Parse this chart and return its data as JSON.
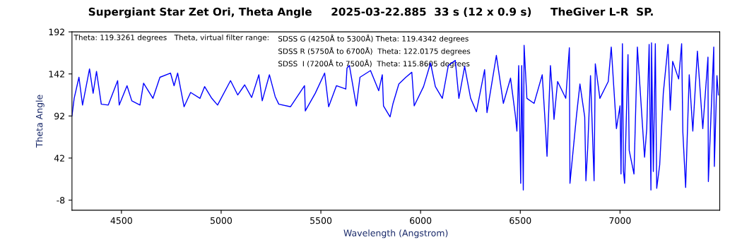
{
  "chart_data": {
    "type": "line",
    "title": "Supergiant Star Zet Ori, Theta Angle     2025-03-22.885  33 s (12 x 0.9 s)     TheGiver L-R  SP.",
    "xlabel": "Wavelength (Angstrom)",
    "ylabel": "Theta Angle",
    "annotations": [
      "Theta: 119.3261 degrees",
      "Theta, virtual filter range:",
      "SDSS G (4250Å to 5300Å) Theta: 119.4342 degrees",
      "SDSS R (5750Å to 6700Å)  Theta: 122.0175 degrees",
      "SDSS  I (7200Å to 7500Å)  Theta: 115.8605 degrees"
    ],
    "xlim": [
      4252,
      7500
    ],
    "ylim": [
      -20,
      192
    ],
    "xticks": [
      4500,
      5000,
      5500,
      6000,
      6500,
      7000
    ],
    "yticks": [
      -8,
      42,
      92,
      142,
      192
    ],
    "grid": false,
    "legend": false,
    "marker": "none",
    "line_style": "solid",
    "series": [
      {
        "color": "#0000ff",
        "x": [
          4252,
          4263,
          4287,
          4305,
          4340,
          4358,
          4375,
          4399,
          4434,
          4481,
          4489,
          4528,
          4552,
          4593,
          4611,
          4658,
          4693,
          4746,
          4764,
          4782,
          4814,
          4847,
          4894,
          4917,
          4953,
          4982,
          5047,
          5083,
          5118,
          5153,
          5189,
          5206,
          5242,
          5271,
          5289,
          5348,
          5418,
          5422,
          5472,
          5519,
          5539,
          5578,
          5625,
          5631,
          5643,
          5678,
          5696,
          5749,
          5790,
          5808,
          5814,
          5847,
          5862,
          5891,
          5926,
          5956,
          5968,
          6015,
          6050,
          6074,
          6109,
          6139,
          6174,
          6192,
          6221,
          6251,
          6280,
          6321,
          6333,
          6380,
          6415,
          6451,
          6475,
          6483,
          6492,
          6502,
          6507,
          6515,
          6519,
          6533,
          6569,
          6610,
          6626,
          6634,
          6651,
          6663,
          6669,
          6687,
          6728,
          6746,
          6749,
          6782,
          6799,
          6823,
          6829,
          6838,
          6852,
          6870,
          6876,
          6899,
          6941,
          6956,
          6982,
          7000,
          7005,
          7012,
          7017,
          7023,
          7040,
          7046,
          7070,
          7087,
          7123,
          7134,
          7146,
          7155,
          7158,
          7167,
          7177,
          7184,
          7199,
          7217,
          7241,
          7252,
          7264,
          7294,
          7309,
          7315,
          7329,
          7347,
          7365,
          7388,
          7415,
          7441,
          7443,
          7470,
          7473,
          7486,
          7493
        ],
        "values": [
          92,
          113,
          138,
          105,
          148,
          119,
          145,
          106,
          105,
          134,
          105,
          128,
          110,
          105,
          131,
          113,
          138,
          143,
          128,
          143,
          103,
          120,
          113,
          127,
          113,
          105,
          134,
          117,
          129,
          114,
          141,
          110,
          141,
          115,
          106,
          103,
          128,
          98,
          119,
          143,
          103,
          128,
          124,
          149,
          152,
          104,
          138,
          146,
          122,
          141,
          104,
          91,
          107,
          130,
          138,
          144,
          104,
          127,
          155,
          127,
          113,
          152,
          158,
          113,
          151,
          113,
          97,
          147,
          96,
          164,
          107,
          137,
          93,
          74,
          152,
          12,
          152,
          4,
          176,
          113,
          107,
          141,
          79,
          44,
          152,
          113,
          88,
          133,
          113,
          173,
          12,
          93,
          130,
          91,
          15,
          54,
          140,
          15,
          154,
          113,
          133,
          174,
          77,
          104,
          23,
          178,
          27,
          12,
          165,
          51,
          23,
          174,
          43,
          77,
          177,
          4,
          179,
          26,
          178,
          6,
          34,
          119,
          177,
          99,
          157,
          136,
          178,
          73,
          7,
          141,
          74,
          169,
          77,
          162,
          14,
          174,
          32,
          140,
          117
        ]
      }
    ]
  }
}
